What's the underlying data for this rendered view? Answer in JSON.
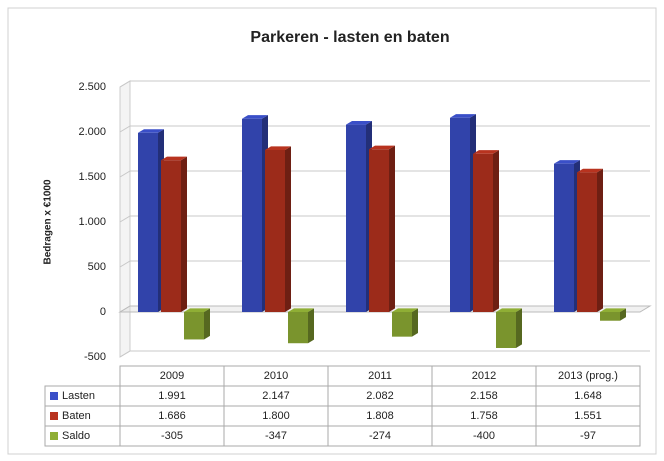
{
  "chart_data": {
    "type": "bar3d",
    "title": "Parkeren - lasten en baten",
    "y_label": "Bedragen x €1000",
    "categories": [
      "2009",
      "2010",
      "2011",
      "2012",
      "2013 (prog.)"
    ],
    "series": [
      {
        "name": "Lasten",
        "color": "#3a4fc8",
        "values": [
          1991,
          2147,
          2082,
          2158,
          1648
        ],
        "value_labels": [
          "1.991",
          "2.147",
          "2.082",
          "2.158",
          "1.648"
        ]
      },
      {
        "name": "Baten",
        "color": "#b8331f",
        "values": [
          1686,
          1800,
          1808,
          1758,
          1551
        ],
        "value_labels": [
          "1.686",
          "1.800",
          "1.808",
          "1.758",
          "1.551"
        ]
      },
      {
        "name": "Saldo",
        "color": "#8fae35",
        "values": [
          -305,
          -347,
          -274,
          -400,
          -97
        ],
        "value_labels": [
          "-305",
          "-347",
          "-274",
          "-400",
          "-97"
        ]
      }
    ],
    "ylim": [
      -500,
      2500
    ],
    "yticks": [
      {
        "value": 2500,
        "label": "2.500"
      },
      {
        "value": 2000,
        "label": "2.000"
      },
      {
        "value": 1500,
        "label": "1.500"
      },
      {
        "value": 1000,
        "label": "1.000"
      },
      500,
      0,
      -500
    ],
    "grid": true,
    "data_table": true
  }
}
